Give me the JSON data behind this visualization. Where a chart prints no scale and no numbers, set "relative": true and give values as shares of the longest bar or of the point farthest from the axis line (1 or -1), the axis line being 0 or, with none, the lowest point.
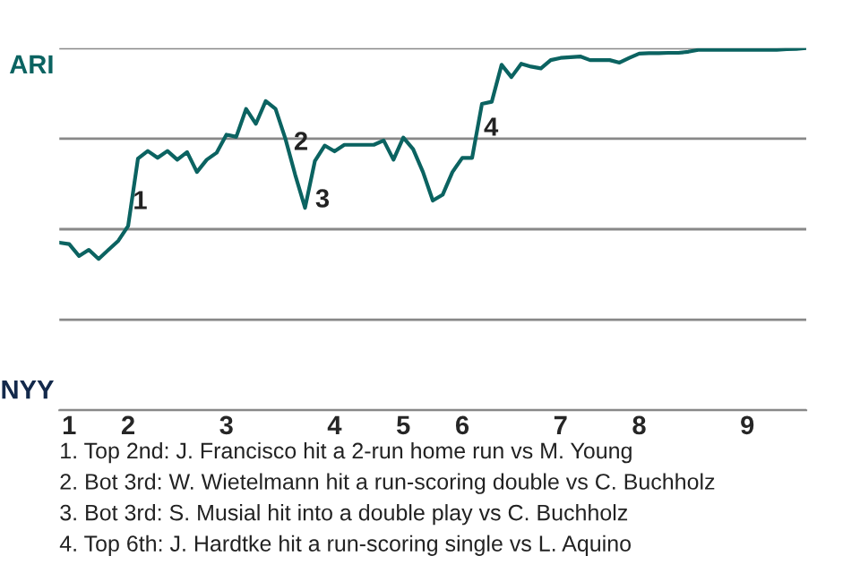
{
  "chart_data": {
    "type": "line",
    "relative": true,
    "categories": [
      null,
      "1",
      null,
      null,
      null,
      null,
      null,
      "2",
      null,
      null,
      null,
      null,
      null,
      null,
      null,
      null,
      null,
      "3",
      null,
      null,
      null,
      null,
      null,
      null,
      null,
      null,
      null,
      null,
      "4",
      null,
      null,
      null,
      null,
      null,
      null,
      "5",
      null,
      null,
      null,
      null,
      null,
      "6",
      null,
      null,
      null,
      null,
      null,
      null,
      null,
      null,
      null,
      "7",
      null,
      null,
      null,
      null,
      null,
      null,
      null,
      "8",
      null,
      null,
      null,
      null,
      null,
      null,
      null,
      null,
      null,
      null,
      "9",
      null,
      null,
      null,
      null,
      null,
      null
    ],
    "series": [
      {
        "color": "#0b6361",
        "values": [
          0.463,
          0.459,
          0.426,
          0.443,
          0.418,
          0.443,
          0.468,
          0.509,
          0.695,
          0.716,
          0.697,
          0.716,
          0.692,
          0.713,
          0.658,
          0.692,
          0.711,
          0.761,
          0.755,
          0.832,
          0.791,
          0.854,
          0.832,
          0.75,
          0.65,
          0.559,
          0.688,
          0.731,
          0.715,
          0.733,
          0.733,
          0.733,
          0.733,
          0.745,
          0.692,
          0.753,
          0.721,
          0.658,
          0.579,
          0.595,
          0.658,
          0.697,
          0.697,
          0.846,
          0.852,
          0.954,
          0.92,
          0.957,
          0.949,
          0.944,
          0.967,
          0.973,
          0.975,
          0.977,
          0.967,
          0.967,
          0.967,
          0.96,
          0.973,
          0.985,
          0.986,
          0.986,
          0.987,
          0.987,
          0.99,
          0.995,
          0.995,
          0.995,
          0.995,
          0.995,
          0.995,
          0.995,
          0.995,
          0.995,
          0.997,
          0.998,
          1.0
        ]
      }
    ],
    "grid": "y",
    "annotations": [
      "1",
      "2",
      "3",
      "4",
      "ARI",
      "NYY",
      "1. Top 2nd: J. Francisco hit a 2-run home run vs M. Young",
      "2. Bot 3rd: W. Wietelmann hit a run-scoring double vs C. Buchholz",
      "3. Bot 3rd: S. Musial hit into a double play vs C. Buchholz",
      "4. Top 6th: J. Hardtke hit a run-scoring single vs L. Aquino"
    ]
  }
}
